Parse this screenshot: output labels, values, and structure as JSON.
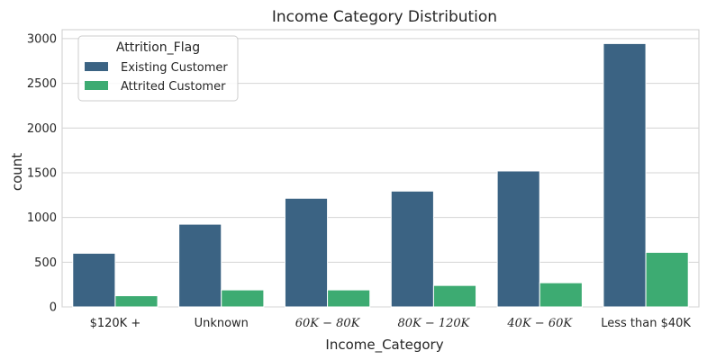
{
  "chart_data": {
    "type": "bar",
    "title": "Income Category Distribution",
    "xlabel": "Income_Category",
    "ylabel": "count",
    "categories": [
      "$120K +",
      "Unknown",
      "$60K - $80K",
      "$80K - $120K",
      "$40K - $60K",
      "Less than $40K"
    ],
    "category_display": [
      {
        "text": "$120K +",
        "math": false
      },
      {
        "text": "Unknown",
        "math": false
      },
      {
        "text": "60K − 80K",
        "math": true
      },
      {
        "text": "80K − 120K",
        "math": true
      },
      {
        "text": "40K − 60K",
        "math": true
      },
      {
        "text": "Less than $40K",
        "math": false
      }
    ],
    "series": [
      {
        "name": "Existing Customer",
        "color": "#3b6383",
        "values": [
          600,
          925,
          1215,
          1295,
          1520,
          2945
        ]
      },
      {
        "name": "Attrited Customer",
        "color": "#3dab72",
        "values": [
          125,
          190,
          190,
          240,
          270,
          610
        ]
      }
    ],
    "ylim": [
      0,
      3100
    ],
    "yticks": [
      0,
      500,
      1000,
      1500,
      2000,
      2500,
      3000
    ],
    "grid": true,
    "legend": {
      "title": "Attrition_Flag",
      "placement": "top-left"
    }
  }
}
